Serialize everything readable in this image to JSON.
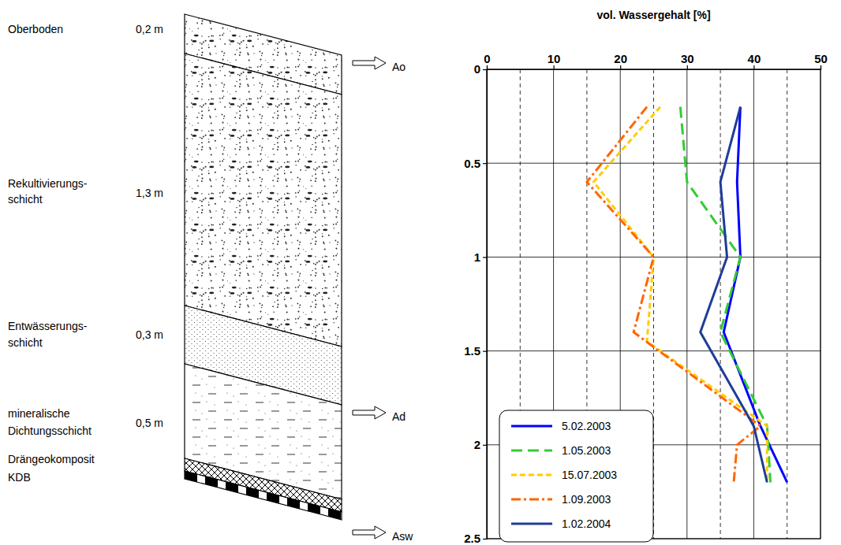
{
  "chart_data": {
    "type": "line",
    "x_label": "vol. Wassergehalt [%]",
    "xlim": [
      0,
      50
    ],
    "xticks": [
      0,
      10,
      20,
      30,
      40,
      50
    ],
    "x_minor_grid": [
      5,
      15,
      25,
      35,
      45
    ],
    "ylim": [
      0,
      2.5
    ],
    "yticks": [
      0,
      0.5,
      1,
      1.5,
      2,
      2.5
    ],
    "grid": true,
    "legend": "lower left",
    "series": [
      {
        "name": "5.02.2003",
        "color": "#0000ff",
        "line_style": "solid",
        "x": [
          38,
          37.5,
          38,
          35.5,
          41,
          45
        ],
        "values": [
          0.2,
          0.6,
          1.0,
          1.4,
          1.9,
          2.2
        ]
      },
      {
        "name": "1.05.2003",
        "color": "#33cc33",
        "line_style": "long_dash",
        "x": [
          29,
          30,
          38,
          35,
          42,
          42.5
        ],
        "values": [
          0.2,
          0.6,
          1.0,
          1.4,
          1.9,
          2.2
        ]
      },
      {
        "name": "15.07.2003",
        "color": "#ffcc00",
        "line_style": "dash",
        "x": [
          26,
          16,
          25,
          24,
          42,
          42
        ],
        "values": [
          0.2,
          0.6,
          1.0,
          1.45,
          1.9,
          2.2
        ]
      },
      {
        "name": "1.09.2003",
        "color": "#ff6600",
        "line_style": "dash_dot",
        "x": [
          24,
          15,
          25,
          22,
          41,
          37.5,
          37
        ],
        "values": [
          0.2,
          0.6,
          1.0,
          1.4,
          1.9,
          2.0,
          2.2
        ]
      },
      {
        "name": "1.02.2004",
        "color": "#1f3c99",
        "line_style": "solid",
        "x": [
          38,
          35,
          36,
          32,
          40,
          42
        ],
        "values": [
          0.2,
          0.6,
          1.0,
          1.4,
          1.9,
          2.2
        ]
      }
    ]
  },
  "diagram": {
    "layers": [
      {
        "name": [
          "Oberboden"
        ],
        "thickness": "0,2 m"
      },
      {
        "name": [
          "Rekultivierungs-",
          "schicht"
        ],
        "thickness": "1,3 m"
      },
      {
        "name": [
          "Entwässerungs-",
          "schicht"
        ],
        "thickness": "0,3 m"
      },
      {
        "name": [
          "mineralische",
          "Dichtungsschicht"
        ],
        "thickness": "0,5 m"
      },
      {
        "name": [
          "Drängeokomposit"
        ]
      },
      {
        "name": [
          "KDB"
        ]
      }
    ],
    "outflows": [
      "Ao",
      "Ad",
      "Asw"
    ]
  }
}
